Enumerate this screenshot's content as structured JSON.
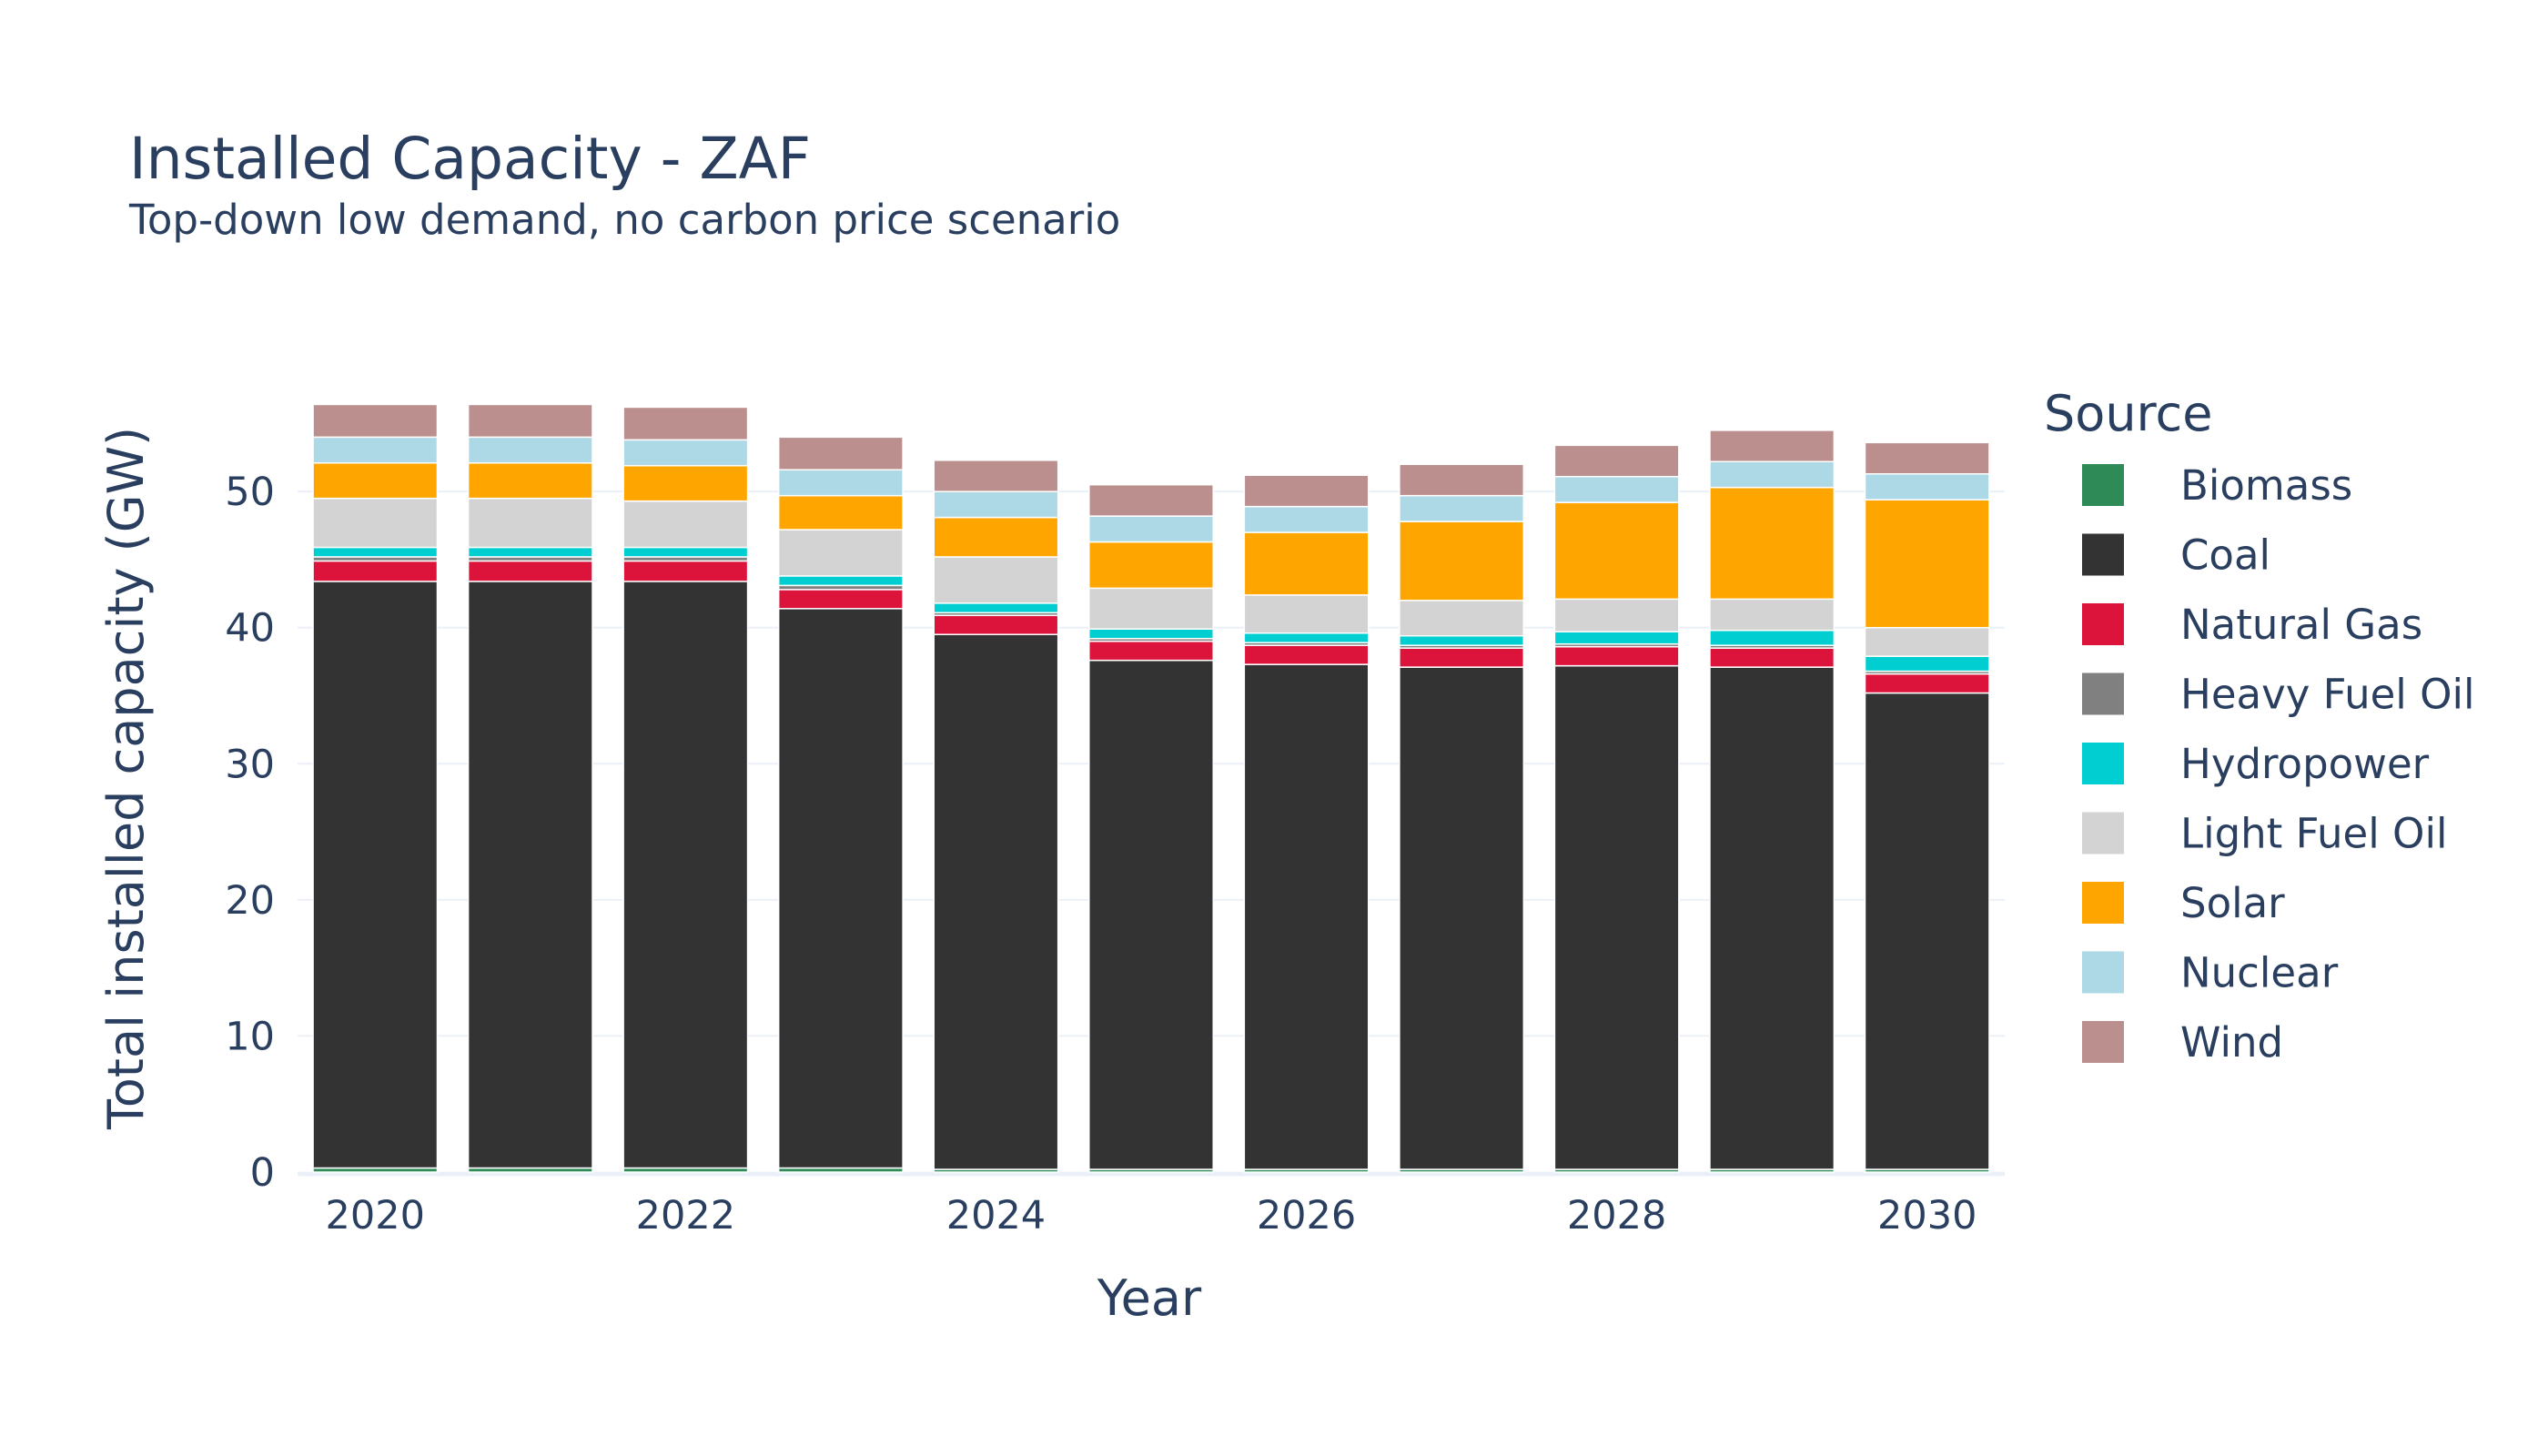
{
  "chart_data": {
    "type": "bar",
    "stacked": true,
    "title": "Installed Capacity - ZAF",
    "subtitle": "Top-down low demand, no carbon price scenario",
    "xlabel": "Year",
    "ylabel": "Total installed capacity (GW)",
    "ylim": [
      0,
      57.5
    ],
    "yticks": [
      0,
      10,
      20,
      30,
      40,
      50
    ],
    "xticks": [
      2020,
      2022,
      2024,
      2026,
      2028,
      2030
    ],
    "grid": true,
    "legend_title": "Source",
    "legend_position": "right",
    "x": [
      2020,
      2021,
      2022,
      2023,
      2024,
      2025,
      2026,
      2027,
      2028,
      2029,
      2030
    ],
    "series": [
      {
        "name": "Biomass",
        "color": "#2e8b57",
        "values": [
          0.3,
          0.3,
          0.3,
          0.3,
          0.2,
          0.2,
          0.2,
          0.2,
          0.2,
          0.2,
          0.2
        ]
      },
      {
        "name": "Coal",
        "color": "#333333",
        "values": [
          43.1,
          43.1,
          43.1,
          41.1,
          39.3,
          37.4,
          37.1,
          36.9,
          37.0,
          36.9,
          35.0
        ]
      },
      {
        "name": "Natural Gas",
        "color": "#dc143c",
        "values": [
          1.5,
          1.5,
          1.5,
          1.4,
          1.4,
          1.4,
          1.4,
          1.4,
          1.4,
          1.4,
          1.4
        ]
      },
      {
        "name": "Heavy Fuel Oil",
        "color": "#808080",
        "values": [
          0.3,
          0.3,
          0.3,
          0.3,
          0.2,
          0.2,
          0.2,
          0.2,
          0.2,
          0.2,
          0.2
        ]
      },
      {
        "name": "Hydropower",
        "color": "#00ced1",
        "values": [
          0.7,
          0.7,
          0.7,
          0.7,
          0.7,
          0.7,
          0.7,
          0.7,
          0.9,
          1.1,
          1.1
        ]
      },
      {
        "name": "Light Fuel Oil",
        "color": "#d3d3d3",
        "values": [
          3.6,
          3.6,
          3.4,
          3.4,
          3.4,
          3.0,
          2.8,
          2.6,
          2.4,
          2.3,
          2.1
        ]
      },
      {
        "name": "Solar",
        "color": "#ffa500",
        "values": [
          2.6,
          2.6,
          2.6,
          2.5,
          2.9,
          3.4,
          4.6,
          5.8,
          7.1,
          8.2,
          9.4
        ]
      },
      {
        "name": "Nuclear",
        "color": "#add8e6",
        "values": [
          1.9,
          1.9,
          1.9,
          1.9,
          1.9,
          1.9,
          1.9,
          1.9,
          1.9,
          1.9,
          1.9
        ]
      },
      {
        "name": "Wind",
        "color": "#bc8f8f",
        "values": [
          2.4,
          2.4,
          2.4,
          2.4,
          2.3,
          2.3,
          2.3,
          2.3,
          2.3,
          2.3,
          2.3
        ]
      }
    ]
  }
}
